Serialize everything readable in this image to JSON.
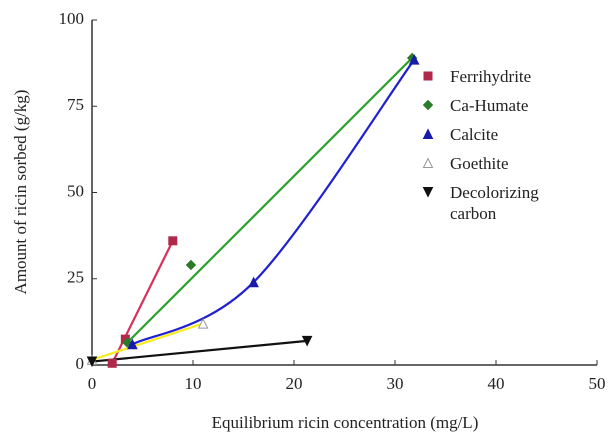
{
  "chart_data": {
    "type": "scatter",
    "x_label": "Equilibrium ricin concentration (mg/L)",
    "y_label": "Amount of ricin sorbed (g/kg)",
    "xlim": [
      0,
      50
    ],
    "xticks": [
      0,
      10,
      20,
      30,
      40,
      50
    ],
    "ylim": [
      0,
      100
    ],
    "yticks": [
      0,
      25,
      50,
      75,
      100
    ],
    "series": [
      {
        "name": "Ferrihydrite",
        "color": "#b0284a",
        "line_color": "#d8305c",
        "marker": "square",
        "fit": "linear",
        "x": [
          2,
          3.3,
          8
        ],
        "values": [
          0.5,
          7.5,
          36
        ]
      },
      {
        "name": "Ca-Humate",
        "color": "#2a7a2a",
        "line_color": "#2ea02e",
        "marker": "diamond",
        "fit": "linear",
        "x": [
          3.5,
          9.8,
          31.7
        ],
        "values": [
          6.5,
          29,
          89
        ]
      },
      {
        "name": "Calcite",
        "color": "#1a1aaa",
        "line_color": "#2020d0",
        "marker": "triangle",
        "fit": "curve",
        "x": [
          4,
          16,
          31.9
        ],
        "values": [
          6,
          24,
          88.5
        ]
      },
      {
        "name": "Goethite",
        "color": "#f2e030",
        "line_color": "#f8ec20",
        "marker": "triangle-open",
        "fit": "linear",
        "x": [
          0,
          11
        ],
        "values": [
          1.5,
          12
        ]
      },
      {
        "name": "Decolorizing carbon",
        "color": "#111111",
        "line_color": "#111111",
        "marker": "triangle-down",
        "fit": "linear",
        "x": [
          0,
          21.3
        ],
        "values": [
          1,
          7
        ]
      }
    ]
  }
}
